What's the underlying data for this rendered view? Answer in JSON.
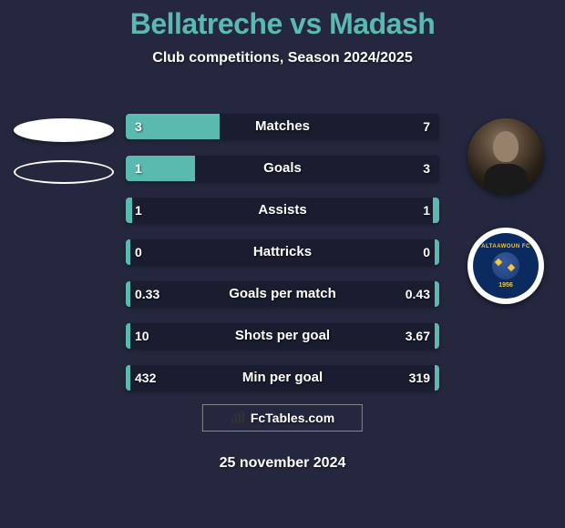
{
  "title": "Bellatreche vs Madash",
  "subtitle": "Club competitions, Season 2024/2025",
  "colors": {
    "background": "#24273e",
    "accent": "#5bbab0",
    "bar_bg": "#1a1c30",
    "text": "#ffffff",
    "club_primary": "#0b2a5f",
    "club_accent": "#f5c93a"
  },
  "stats": [
    {
      "label": "Matches",
      "left_val": "3",
      "right_val": "7",
      "left_pct": 30,
      "right_pct": 0
    },
    {
      "label": "Goals",
      "left_val": "1",
      "right_val": "3",
      "left_pct": 22,
      "right_pct": 0
    },
    {
      "label": "Assists",
      "left_val": "1",
      "right_val": "1",
      "left_pct": 2,
      "right_pct": 2
    },
    {
      "label": "Hattricks",
      "left_val": "0",
      "right_val": "0",
      "left_pct": 1.5,
      "right_pct": 1.5
    },
    {
      "label": "Goals per match",
      "left_val": "0.33",
      "right_val": "0.43",
      "left_pct": 1.5,
      "right_pct": 1.5
    },
    {
      "label": "Shots per goal",
      "left_val": "10",
      "right_val": "3.67",
      "left_pct": 1.5,
      "right_pct": 1.5
    },
    {
      "label": "Min per goal",
      "left_val": "432",
      "right_val": "319",
      "left_pct": 1.5,
      "right_pct": 1.5
    }
  ],
  "club": {
    "top_text": "ALTAAWOUN FC",
    "year": "1956"
  },
  "footer": {
    "brand": "FcTables.com",
    "date": "25 november 2024"
  }
}
